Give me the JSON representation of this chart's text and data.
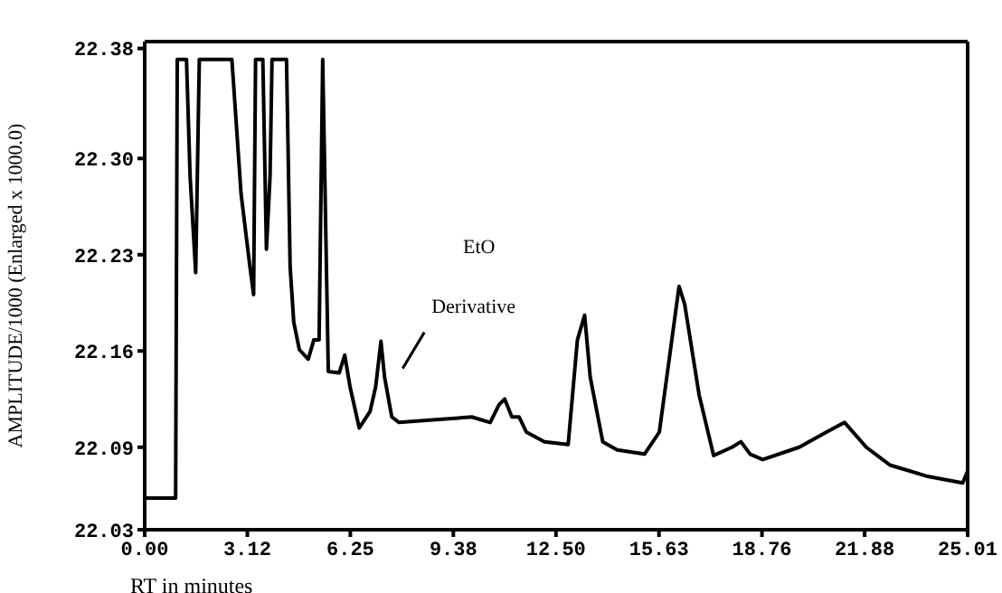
{
  "chart_data": {
    "type": "line",
    "xlabel": "RT in minutes",
    "ylabel": "AMPLITUDE/1000 (Enlarged x 1000.0)",
    "annotations": [
      {
        "text": "Derivative",
        "x": 7.18,
        "y": 22.167
      },
      "EtO"
    ],
    "x": [
      0,
      0.94,
      0.99,
      1.27,
      1.38,
      1.55,
      1.66,
      2.65,
      2.93,
      3.2,
      3.31,
      3.37,
      3.59,
      3.7,
      3.81,
      3.87,
      4.31,
      4.42,
      4.53,
      4.7,
      4.97,
      5.14,
      5.3,
      5.41,
      5.58,
      5.91,
      6.08,
      6.24,
      6.52,
      6.85,
      7.02,
      7.18,
      7.29,
      7.51,
      7.73,
      8.84,
      9.94,
      10.5,
      10.77,
      10.94,
      11.16,
      11.38,
      11.6,
      12.15,
      12.87,
      13.15,
      13.37,
      13.54,
      13.92,
      14.36,
      15.19,
      15.64,
      16.02,
      16.24,
      16.41,
      16.85,
      17.29,
      17.85,
      18.12,
      18.4,
      18.78,
      19.89,
      20.72,
      21.27,
      21.93,
      22.65,
      23.76,
      24.86,
      25.0
    ],
    "series": [
      {
        "color": "#000000",
        "values": [
          22.053,
          22.053,
          22.372,
          22.372,
          22.287,
          22.217,
          22.372,
          22.372,
          22.274,
          22.221,
          22.201,
          22.372,
          22.372,
          22.234,
          22.287,
          22.372,
          22.372,
          22.221,
          22.181,
          22.161,
          22.154,
          22.168,
          22.168,
          22.372,
          22.145,
          22.144,
          22.157,
          22.134,
          22.104,
          22.116,
          22.134,
          22.167,
          22.141,
          22.112,
          22.108,
          22.11,
          22.112,
          22.108,
          22.121,
          22.125,
          22.112,
          22.112,
          22.101,
          22.094,
          22.092,
          22.168,
          22.186,
          22.141,
          22.094,
          22.088,
          22.085,
          22.101,
          22.168,
          22.207,
          22.194,
          22.128,
          22.084,
          22.09,
          22.094,
          22.085,
          22.081,
          22.09,
          22.101,
          22.108,
          22.09,
          22.077,
          22.069,
          22.064,
          22.072
        ]
      }
    ],
    "xlim": [
      0,
      25.01
    ],
    "xticks": [
      {
        "value": 0,
        "label": "0.00"
      },
      3.12,
      {
        "value": 6.25,
        "label": "6.25"
      },
      9.38,
      {
        "value": 12.5,
        "label": "12.50"
      },
      15.63,
      18.76,
      21.88,
      25.01
    ],
    "ylim": [
      22.03,
      22.385
    ],
    "yticks": [
      22.38,
      {
        "value": 22.3,
        "label": "22.30"
      },
      22.23,
      22.16,
      22.09,
      22.03
    ],
    "grid": false,
    "legend": false,
    "marker": "none",
    "line_style": "solid"
  }
}
